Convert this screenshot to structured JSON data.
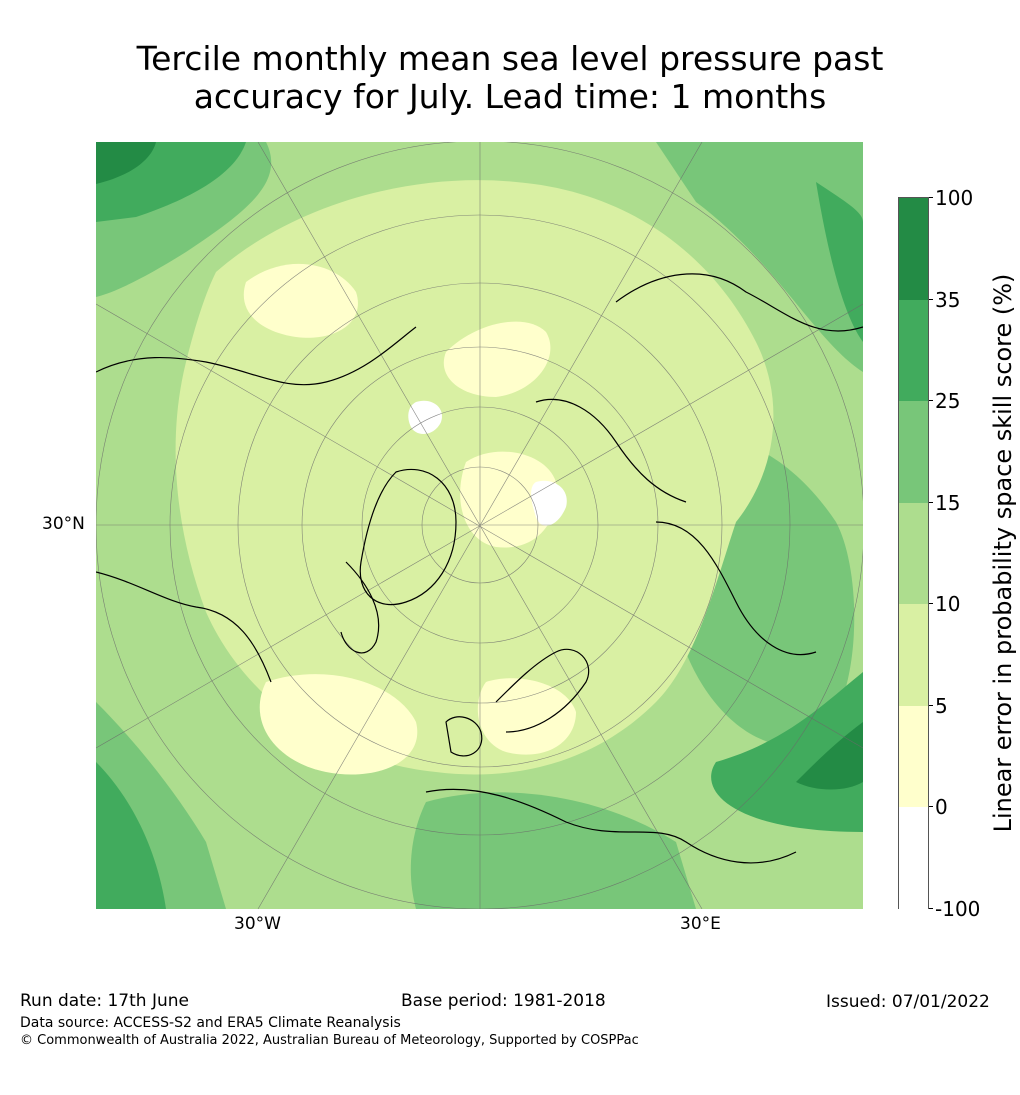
{
  "title_line1": "Tercile monthly mean sea level pressure past",
  "title_line2": "accuracy for July. Lead time: 1 months",
  "map": {
    "lat_label": "30°N",
    "lon_labels": [
      "30°W",
      "30°E"
    ],
    "projection": "north-polar-stereographic",
    "graticule": true
  },
  "colorbar": {
    "label": "Linear error in probability space skill score (%)",
    "ticks": [
      "100",
      "35",
      "25",
      "15",
      "10",
      "5",
      "0",
      "-100"
    ],
    "bins": [
      {
        "range": "35 to 100",
        "color": "#238b45"
      },
      {
        "range": "25 to 35",
        "color": "#41ab5d"
      },
      {
        "range": "15 to 25",
        "color": "#78c679"
      },
      {
        "range": "10 to 15",
        "color": "#addd8e"
      },
      {
        "range": "5 to 10",
        "color": "#d9f0a3"
      },
      {
        "range": "0 to 5",
        "color": "#ffffcc"
      },
      {
        "range": "-100 to 0",
        "color": "#ffffff"
      }
    ]
  },
  "footer": {
    "run_date": "Run date: 17th June",
    "base_period": "Base period: 1981-2018",
    "issued": "Issued: 07/01/2022",
    "data_source": "Data source: ACCESS-S2 and ERA5 Climate Reanalysis",
    "copyright": "© Commonwealth of Australia 2022, Australian Bureau of Meteorology, Supported by COSPPac"
  }
}
